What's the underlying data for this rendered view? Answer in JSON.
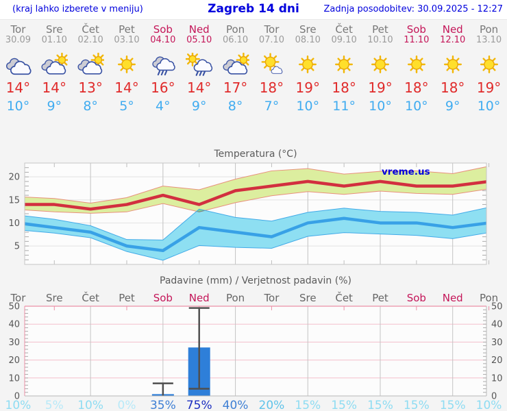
{
  "header": {
    "note": "(kraj lahko izberete v meniju)",
    "title": "Zagreb 14 dni",
    "updated": "Zadnja posodobitev: 30.09.2025 - 12:27"
  },
  "watermark": "vreme.us",
  "colors": {
    "link_blue": "#0000dd",
    "weekend_red": "#c41558",
    "weekday_gray": "#787878",
    "tmax_red": "#e02a2a",
    "tmin_blue": "#41acf0",
    "max_line": "#d22f3f",
    "max_band": "#dcee9f",
    "max_band_edge": "#e8907c",
    "min_line": "#38a1e6",
    "min_band": "#8edff2",
    "min_band_edge": "#41aae8",
    "bar_blue": "#2e7fd9",
    "whisker_gray": "#4f4f4f",
    "precip_grid_pink": "#f3bfcb",
    "precip_border_pink": "#ec8fa6",
    "pct_scale": [
      {
        "min": 70,
        "color": "#1b2ec0"
      },
      {
        "min": 35,
        "color": "#3e7fd4"
      },
      {
        "min": 20,
        "color": "#5fc3e9"
      },
      {
        "min": 10,
        "color": "#8edcf2"
      },
      {
        "min": 0,
        "color": "#b8e9f8"
      }
    ]
  },
  "days": [
    {
      "name": "Tor",
      "date": "30.09",
      "weekend": false,
      "icon": "cloudy",
      "tmax": "14°",
      "tmin": "10°"
    },
    {
      "name": "Sre",
      "date": "01.10",
      "weekend": false,
      "icon": "sun-cloud",
      "tmax": "14°",
      "tmin": "9°"
    },
    {
      "name": "Čet",
      "date": "02.10",
      "weekend": false,
      "icon": "sun-cloud",
      "tmax": "13°",
      "tmin": "8°"
    },
    {
      "name": "Pet",
      "date": "03.10",
      "weekend": false,
      "icon": "sunny",
      "tmax": "14°",
      "tmin": "5°"
    },
    {
      "name": "Sob",
      "date": "04.10",
      "weekend": true,
      "icon": "rain",
      "tmax": "16°",
      "tmin": "4°"
    },
    {
      "name": "Ned",
      "date": "05.10",
      "weekend": true,
      "icon": "sun-rain",
      "tmax": "14°",
      "tmin": "9°"
    },
    {
      "name": "Pon",
      "date": "06.10",
      "weekend": false,
      "icon": "sun-cloud",
      "tmax": "17°",
      "tmin": "8°"
    },
    {
      "name": "Tor",
      "date": "07.10",
      "weekend": false,
      "icon": "sun-small-cloud",
      "tmax": "18°",
      "tmin": "7°"
    },
    {
      "name": "Sre",
      "date": "08.10",
      "weekend": false,
      "icon": "sunny",
      "tmax": "19°",
      "tmin": "10°"
    },
    {
      "name": "Čet",
      "date": "09.10",
      "weekend": false,
      "icon": "sunny",
      "tmax": "18°",
      "tmin": "11°"
    },
    {
      "name": "Pet",
      "date": "10.10",
      "weekend": false,
      "icon": "sunny",
      "tmax": "19°",
      "tmin": "10°"
    },
    {
      "name": "Sob",
      "date": "11.10",
      "weekend": true,
      "icon": "sunny",
      "tmax": "18°",
      "tmin": "10°"
    },
    {
      "name": "Ned",
      "date": "12.10",
      "weekend": true,
      "icon": "sunny",
      "tmax": "18°",
      "tmin": "9°"
    },
    {
      "name": "Pon",
      "date": "13.10",
      "weekend": false,
      "icon": "sunny",
      "tmax": "19°",
      "tmin": "10°"
    }
  ],
  "chart_data": [
    {
      "type": "line",
      "title": "Temperatura (°C)",
      "categories": [
        "Tor",
        "Sre",
        "Čet",
        "Pet",
        "Sob",
        "Ned",
        "Pon",
        "Tor",
        "Sre",
        "Čet",
        "Pet",
        "Sob",
        "Ned",
        "Pon"
      ],
      "ylim": [
        1,
        23
      ],
      "yticks": [
        5,
        10,
        15,
        20
      ],
      "grid": true,
      "legend": false,
      "series": [
        {
          "name": "max",
          "values": [
            14,
            14,
            13,
            14,
            16,
            14,
            17,
            18,
            19,
            18,
            19,
            18,
            18,
            19
          ]
        },
        {
          "name": "max_upper",
          "values": [
            15.7,
            15.3,
            14.3,
            15.5,
            18,
            17.2,
            19.5,
            21.3,
            21.8,
            20.6,
            21.2,
            21.3,
            20.7,
            22.3
          ]
        },
        {
          "name": "max_lower",
          "values": [
            12.9,
            12.4,
            12.1,
            12.4,
            14.2,
            12.4,
            14.4,
            15.9,
            16.8,
            16.2,
            16.9,
            16.4,
            16.2,
            17.4
          ]
        },
        {
          "name": "min",
          "values": [
            10,
            9,
            8,
            5,
            4,
            9,
            8,
            7,
            10,
            11,
            10,
            10,
            9,
            10
          ]
        },
        {
          "name": "min_upper",
          "values": [
            11.7,
            10.8,
            9.4,
            6.4,
            6.3,
            13,
            11.2,
            10.4,
            12.3,
            13.2,
            12.5,
            12.3,
            11.7,
            13.4
          ]
        },
        {
          "name": "min_lower",
          "values": [
            8.5,
            7.8,
            6.8,
            3.8,
            1.9,
            5.1,
            4.7,
            4.5,
            7.1,
            7.9,
            7.6,
            7.3,
            6.6,
            7.9
          ]
        }
      ]
    },
    {
      "type": "bar",
      "title": "Padavine (mm) / Verjetnost padavin (%)",
      "categories": [
        "Tor",
        "Sre",
        "Čet",
        "Pet",
        "Sob",
        "Ned",
        "Pon",
        "Tor",
        "Sre",
        "Čet",
        "Pet",
        "Sob",
        "Ned",
        "Pon"
      ],
      "weekend_flags": [
        false,
        false,
        false,
        false,
        true,
        true,
        false,
        false,
        false,
        false,
        false,
        true,
        true,
        false
      ],
      "ylim": [
        0,
        50
      ],
      "yticks": [
        0,
        10,
        20,
        30,
        40,
        50
      ],
      "precip_mm": [
        0,
        0,
        0,
        0,
        1,
        27,
        0,
        0,
        0,
        0,
        0,
        0,
        0,
        0
      ],
      "whisker_lo": [
        null,
        null,
        null,
        null,
        0,
        4,
        null,
        null,
        null,
        null,
        null,
        null,
        null,
        null
      ],
      "whisker_hi": [
        null,
        null,
        null,
        null,
        7,
        49,
        null,
        null,
        null,
        null,
        null,
        null,
        null,
        null
      ],
      "probability_pct": [
        10,
        5,
        10,
        0,
        35,
        75,
        40,
        20,
        15,
        15,
        15,
        15,
        15,
        10
      ]
    }
  ]
}
